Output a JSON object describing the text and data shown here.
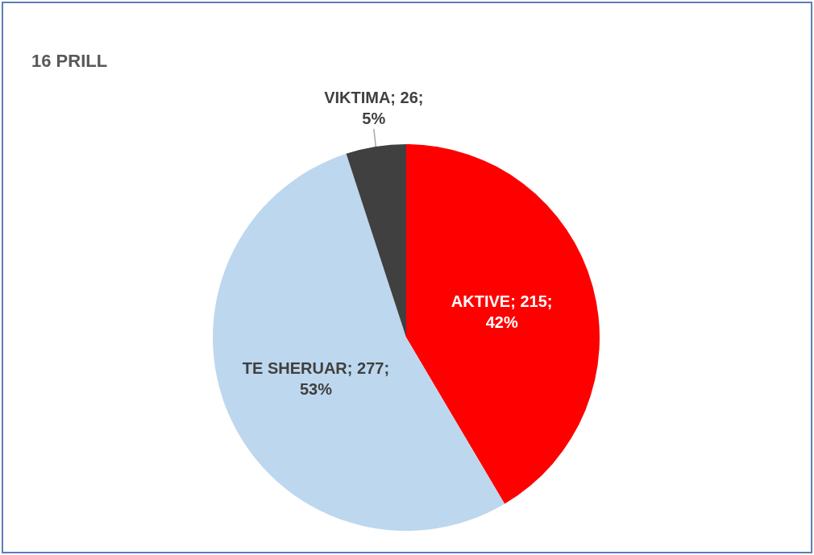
{
  "chart_data": {
    "type": "pie",
    "title": "16 PRILL",
    "categories": [
      "AKTIVE",
      "TE SHERUAR",
      "VIKTIMA"
    ],
    "values": [
      215,
      277,
      26
    ],
    "value_labels": [
      "215; 42%",
      "277; 53%",
      "26; 5%"
    ],
    "colors": [
      "#ff0000",
      "#bdd7ee",
      "#404040"
    ]
  }
}
